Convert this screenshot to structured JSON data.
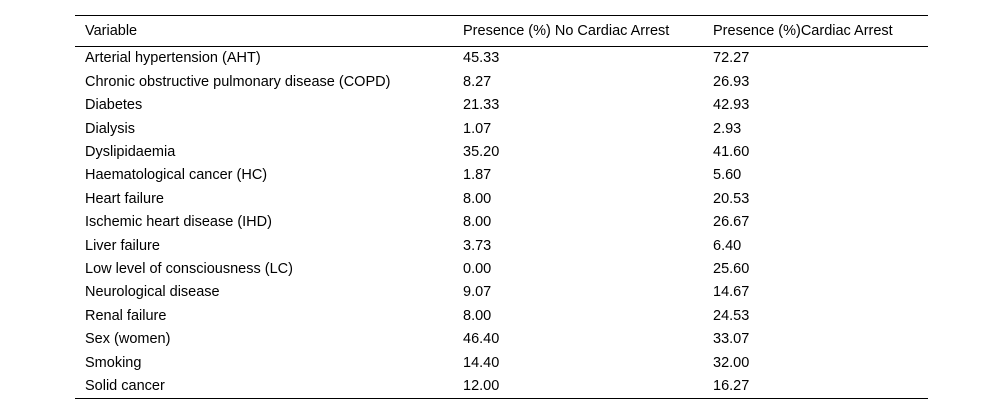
{
  "colors": {
    "background": "#ffffff",
    "text": "#000000",
    "rule": "#000000"
  },
  "table": {
    "columns": [
      "Variable",
      "Presence (%) No Cardiac Arrest",
      "Presence (%)Cardiac Arrest"
    ],
    "rows": [
      {
        "variable": "Arterial hypertension (AHT)",
        "no_arrest": "45.33",
        "arrest": "72.27"
      },
      {
        "variable": "Chronic obstructive pulmonary disease (COPD)",
        "no_arrest": "8.27",
        "arrest": "26.93"
      },
      {
        "variable": "Diabetes",
        "no_arrest": "21.33",
        "arrest": "42.93"
      },
      {
        "variable": "Dialysis",
        "no_arrest": "1.07",
        "arrest": "2.93"
      },
      {
        "variable": "Dyslipidaemia",
        "no_arrest": "35.20",
        "arrest": "41.60"
      },
      {
        "variable": "Haematological cancer (HC)",
        "no_arrest": "1.87",
        "arrest": "5.60"
      },
      {
        "variable": "Heart failure",
        "no_arrest": "8.00",
        "arrest": "20.53"
      },
      {
        "variable": "Ischemic heart disease (IHD)",
        "no_arrest": "8.00",
        "arrest": "26.67"
      },
      {
        "variable": "Liver failure",
        "no_arrest": "3.73",
        "arrest": "6.40"
      },
      {
        "variable": "Low level of consciousness (LC)",
        "no_arrest": "0.00",
        "arrest": "25.60"
      },
      {
        "variable": "Neurological disease",
        "no_arrest": "9.07",
        "arrest": "14.67"
      },
      {
        "variable": "Renal failure",
        "no_arrest": "8.00",
        "arrest": "24.53"
      },
      {
        "variable": "Sex (women)",
        "no_arrest": "46.40",
        "arrest": "33.07"
      },
      {
        "variable": "Smoking",
        "no_arrest": "14.40",
        "arrest": "32.00"
      },
      {
        "variable": "Solid cancer",
        "no_arrest": "12.00",
        "arrest": "16.27"
      }
    ]
  },
  "chart_data": {
    "type": "table",
    "title": "",
    "columns": [
      "Variable",
      "Presence (%) No Cardiac Arrest",
      "Presence (%)Cardiac Arrest"
    ],
    "categories": [
      "Arterial hypertension (AHT)",
      "Chronic obstructive pulmonary disease (COPD)",
      "Diabetes",
      "Dialysis",
      "Dyslipidaemia",
      "Haematological cancer (HC)",
      "Heart failure",
      "Ischemic heart disease (IHD)",
      "Liver failure",
      "Low level of consciousness (LC)",
      "Neurological disease",
      "Renal failure",
      "Sex (women)",
      "Smoking",
      "Solid cancer"
    ],
    "series": [
      {
        "name": "Presence (%) No Cardiac Arrest",
        "values": [
          45.33,
          8.27,
          21.33,
          1.07,
          35.2,
          1.87,
          8.0,
          8.0,
          3.73,
          0.0,
          9.07,
          8.0,
          46.4,
          14.4,
          12.0
        ]
      },
      {
        "name": "Presence (%)Cardiac Arrest",
        "values": [
          72.27,
          26.93,
          42.93,
          2.93,
          41.6,
          5.6,
          20.53,
          26.67,
          6.4,
          25.6,
          14.67,
          24.53,
          33.07,
          32.0,
          16.27
        ]
      }
    ]
  }
}
